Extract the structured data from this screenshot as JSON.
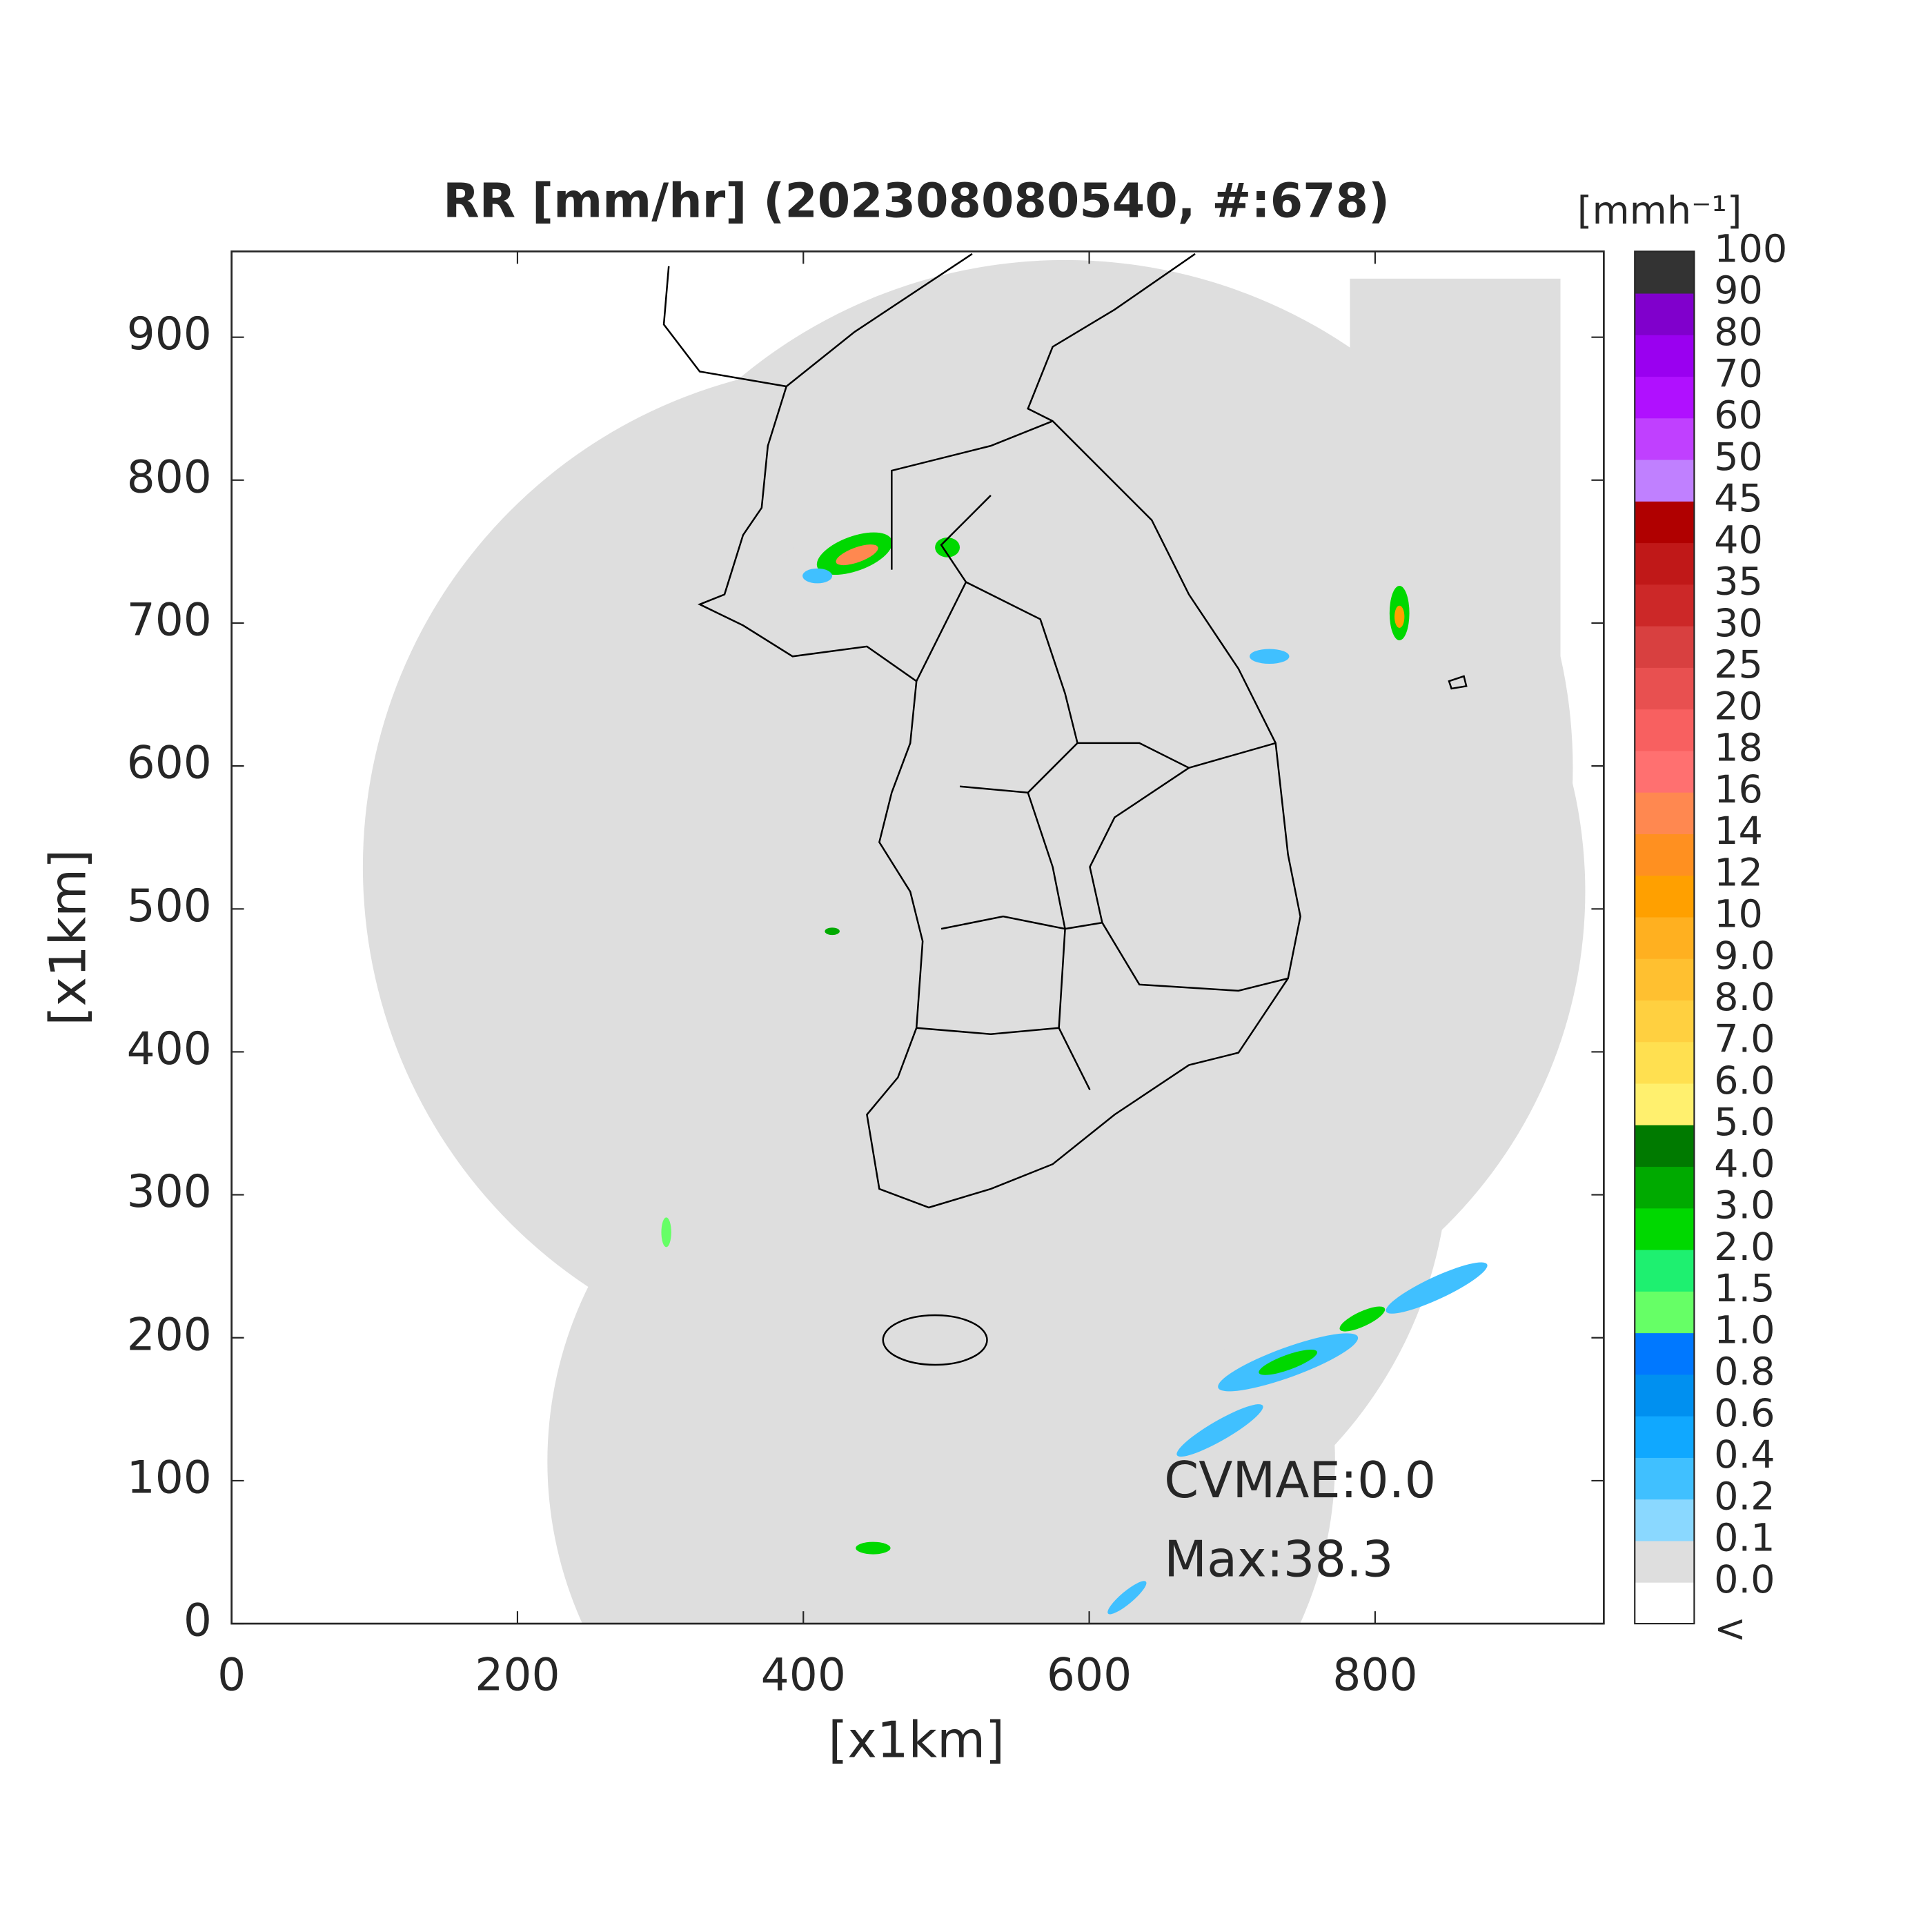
{
  "title": "RR [mm/hr] (202308080540, #:678)",
  "x_axis": {
    "label": "[x1km]",
    "lim": [
      0,
      960
    ],
    "ticks": [
      0,
      200,
      400,
      600,
      800
    ]
  },
  "y_axis": {
    "label": "[x1km]",
    "lim": [
      0,
      960
    ],
    "ticks": [
      0,
      100,
      200,
      300,
      400,
      500,
      600,
      700,
      800,
      900
    ]
  },
  "colorbar": {
    "unit": "[mmh⁻¹]",
    "labels": [
      "<",
      "0.0",
      "0.1",
      "0.2",
      "0.4",
      "0.6",
      "0.8",
      "1.0",
      "1.5",
      "2.0",
      "3.0",
      "4.0",
      "5.0",
      "6.0",
      "7.0",
      "8.0",
      "9.0",
      "10",
      "12",
      "14",
      "16",
      "18",
      "20",
      "25",
      "30",
      "35",
      "40",
      "45",
      "50",
      "60",
      "70",
      "80",
      "90",
      "100"
    ],
    "colors": [
      "#ffffff",
      "#dedede",
      "#8ad8ff",
      "#40c0ff",
      "#10a8ff",
      "#0090f0",
      "#0078ff",
      "#66ff66",
      "#1ef070",
      "#00d800",
      "#00aa00",
      "#007a00",
      "#fff06e",
      "#ffe050",
      "#ffd040",
      "#ffc030",
      "#ffb020",
      "#ffa000",
      "#ff9020",
      "#ff8850",
      "#ff7070",
      "#f86060",
      "#e85050",
      "#d84040",
      "#cc2828",
      "#c01818",
      "#b00000",
      "#c080ff",
      "#c040ff",
      "#b010ff",
      "#9a00f0",
      "#8000cc",
      "#333333"
    ]
  },
  "annotations": [
    "CVMAE:0.0",
    "Max:38.3"
  ]
}
